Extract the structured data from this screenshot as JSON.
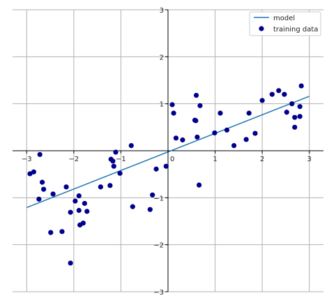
{
  "chart_data": {
    "type": "scatter",
    "xlim": [
      -3.3,
      3.3
    ],
    "ylim": [
      -3,
      3
    ],
    "grid": true,
    "legend_position": "top-right",
    "x_ticks": [
      -3,
      -2,
      -1,
      0,
      1,
      2,
      3
    ],
    "y_ticks": [
      -3,
      -2,
      -1,
      0,
      1,
      2,
      3
    ],
    "x_tick_labels": [
      "−3",
      "−2",
      "−1",
      "0",
      "1",
      "2",
      "3"
    ],
    "y_tick_labels": [
      "−3",
      "−2",
      "−1",
      "0",
      "1",
      "2",
      "3"
    ],
    "colors": {
      "model_line": "#1f77b4",
      "points": "#00008b",
      "grid": "#b0b0b0",
      "axis": "#000000"
    },
    "series": [
      {
        "name": "model",
        "kind": "line",
        "x": [
          -3.0,
          3.0
        ],
        "y": [
          -1.21,
          1.16
        ]
      },
      {
        "name": "training data",
        "kind": "scatter",
        "points": [
          [
            -2.72,
            -0.08
          ],
          [
            -2.85,
            -0.45
          ],
          [
            -2.93,
            -0.49
          ],
          [
            -2.67,
            -0.67
          ],
          [
            -2.64,
            -0.82
          ],
          [
            -2.74,
            -1.03
          ],
          [
            -2.44,
            -0.92
          ],
          [
            -2.49,
            -1.74
          ],
          [
            -2.25,
            -1.72
          ],
          [
            -2.16,
            -0.77
          ],
          [
            -2.07,
            -1.31
          ],
          [
            -1.97,
            -1.07
          ],
          [
            -1.89,
            -0.96
          ],
          [
            -1.89,
            -1.27
          ],
          [
            -1.77,
            -1.12
          ],
          [
            -1.72,
            -1.29
          ],
          [
            -1.87,
            -1.58
          ],
          [
            -1.8,
            -1.54
          ],
          [
            -2.07,
            -2.39
          ],
          [
            -1.43,
            -0.77
          ],
          [
            -1.23,
            -0.74
          ],
          [
            -1.21,
            -0.18
          ],
          [
            -1.17,
            -0.22
          ],
          [
            -1.15,
            -0.33
          ],
          [
            -1.11,
            -0.03
          ],
          [
            -1.02,
            -0.48
          ],
          [
            -0.78,
            0.11
          ],
          [
            -0.75,
            -1.19
          ],
          [
            -0.38,
            -1.25
          ],
          [
            -0.33,
            -0.94
          ],
          [
            -0.25,
            -0.39
          ],
          [
            -0.04,
            -0.33
          ],
          [
            0.09,
            0.98
          ],
          [
            0.12,
            0.8
          ],
          [
            0.17,
            0.27
          ],
          [
            0.31,
            0.23
          ],
          [
            0.57,
            0.65
          ],
          [
            0.59,
            0.64
          ],
          [
            0.6,
            1.18
          ],
          [
            0.62,
            0.29
          ],
          [
            0.68,
            0.96
          ],
          [
            0.66,
            -0.73
          ],
          [
            0.99,
            0.38
          ],
          [
            1.11,
            0.8
          ],
          [
            1.25,
            0.44
          ],
          [
            1.4,
            0.11
          ],
          [
            1.66,
            0.24
          ],
          [
            1.72,
            0.8
          ],
          [
            1.85,
            0.37
          ],
          [
            2.0,
            1.07
          ],
          [
            2.21,
            1.2
          ],
          [
            2.35,
            1.28
          ],
          [
            2.47,
            1.2
          ],
          [
            2.52,
            0.82
          ],
          [
            2.63,
            1.0
          ],
          [
            2.69,
            0.71
          ],
          [
            2.69,
            0.5
          ],
          [
            2.8,
            0.94
          ],
          [
            2.8,
            0.73
          ],
          [
            2.83,
            1.38
          ]
        ]
      }
    ]
  }
}
